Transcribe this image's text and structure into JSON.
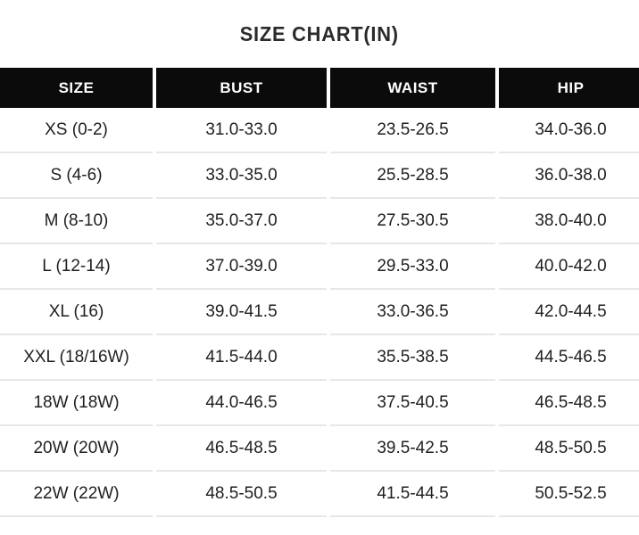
{
  "title": "SIZE CHART(IN)",
  "table": {
    "headers": [
      "SIZE",
      "BUST",
      "WAIST",
      "HIP"
    ],
    "rows": [
      [
        "XS (0-2)",
        "31.0-33.0",
        "23.5-26.5",
        "34.0-36.0"
      ],
      [
        "S (4-6)",
        "33.0-35.0",
        "25.5-28.5",
        "36.0-38.0"
      ],
      [
        "M (8-10)",
        "35.0-37.0",
        "27.5-30.5",
        "38.0-40.0"
      ],
      [
        "L (12-14)",
        "37.0-39.0",
        "29.5-33.0",
        "40.0-42.0"
      ],
      [
        "XL (16)",
        "39.0-41.5",
        "33.0-36.5",
        "42.0-44.5"
      ],
      [
        "XXL (18/16W)",
        "41.5-44.0",
        "35.5-38.5",
        "44.5-46.5"
      ],
      [
        "18W (18W)",
        "44.0-46.5",
        "37.5-40.5",
        "46.5-48.5"
      ],
      [
        "20W (20W)",
        "46.5-48.5",
        "39.5-42.5",
        "48.5-50.5"
      ],
      [
        "22W (22W)",
        "48.5-50.5",
        "41.5-44.5",
        "50.5-52.5"
      ]
    ]
  },
  "colors": {
    "background": "#ffffff",
    "header_bg": "#0b0b0b",
    "header_text": "#ffffff",
    "body_text": "#1f1f1f",
    "row_divider": "#e7e7e7",
    "title_text": "#2b2b2b"
  }
}
